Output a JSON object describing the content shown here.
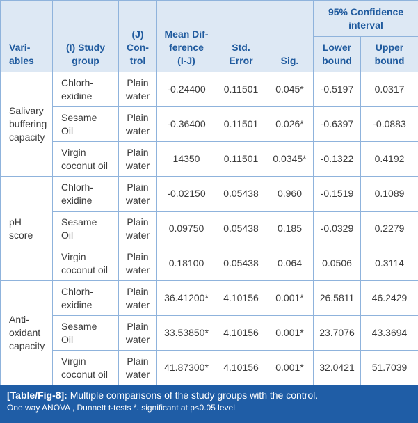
{
  "table": {
    "header": [
      "Vari-\nables",
      "(I) Study\ngroup",
      "(J)\nCon-\ntrol",
      "Mean Dif-\nference\n(I-J)",
      "Std.\nError",
      "Sig."
    ],
    "ci_header": "95% Confidence\ninterval",
    "ci_subheaders": [
      "Lower\nbound",
      "Upper\nbound"
    ],
    "groups": [
      {
        "variable": "Salivary\nbuffering\ncapacity",
        "rows": [
          [
            "Chlorh-\nexidine",
            "Plain\nwater",
            "-0.24400",
            "0.11501",
            "0.045*",
            "-0.5197",
            "0.0317"
          ],
          [
            "Sesame\nOil",
            "Plain\nwater",
            "-0.36400",
            "0.11501",
            "0.026*",
            "-0.6397",
            "-0.0883"
          ],
          [
            "Virgin\ncoconut oil",
            "Plain\nwater",
            "14350",
            "0.11501",
            "0.0345*",
            "-0.1322",
            "0.4192"
          ]
        ]
      },
      {
        "variable": "pH\nscore",
        "rows": [
          [
            "Chlorh-\nexidine",
            "Plain\nwater",
            "-0.02150",
            "0.05438",
            "0.960",
            "-0.1519",
            "0.1089"
          ],
          [
            "Sesame\nOil",
            "Plain\nwater",
            "0.09750",
            "0.05438",
            "0.185",
            "-0.0329",
            "0.2279"
          ],
          [
            "Virgin\ncoconut oil",
            "Plain\nwater",
            "0.18100",
            "0.05438",
            "0.064",
            "0.0506",
            "0.3114"
          ]
        ]
      },
      {
        "variable": "Anti-\noxidant\ncapacity",
        "rows": [
          [
            "Chlorh-\nexidine",
            "Plain\nwater",
            "36.41200*",
            "4.10156",
            "0.001*",
            "26.5811",
            "46.2429"
          ],
          [
            "Sesame\nOil",
            "Plain\nwater",
            "33.53850*",
            "4.10156",
            "0.001*",
            "23.7076",
            "43.3694"
          ],
          [
            "Virgin\ncoconut oil",
            "Plain\nwater",
            "41.87300*",
            "4.10156",
            "0.001*",
            "32.0421",
            "51.7039"
          ]
        ]
      }
    ]
  },
  "caption": {
    "label": "[Table/Fig-8]:",
    "text": "Multiple comparisons of the study groups with the control.",
    "note": "One way ANOVA , Dunnett t-tests *. significant at p≤0.05 level"
  }
}
